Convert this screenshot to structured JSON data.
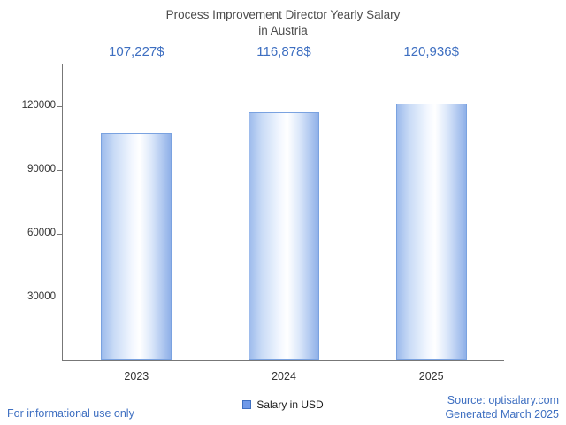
{
  "title": {
    "line1": "Process Improvement Director Yearly Salary",
    "line2": "in Austria"
  },
  "chart_data": {
    "type": "bar",
    "title": "Process Improvement Director Yearly Salary in Austria",
    "categories": [
      "2023",
      "2024",
      "2025"
    ],
    "values": [
      107227,
      116878,
      120936
    ],
    "value_labels": [
      "107,227$",
      "116,878$",
      "120,936$"
    ],
    "series_name": "Salary in USD",
    "xlabel": "",
    "ylabel": "",
    "ylim": [
      0,
      140000
    ],
    "yticks": [
      30000,
      60000,
      90000,
      120000
    ],
    "grid": false,
    "legend_position": "bottom"
  },
  "legend": {
    "label": "Salary in USD"
  },
  "footer": {
    "left": "For informational use only",
    "source": "Source: optisalary.com",
    "generated": "Generated March 2025"
  },
  "colors": {
    "accent_blue": "#3e6fc1",
    "bar_border": "#7aa2e0",
    "bar_fill_edge": "#9dbbec",
    "bar_fill_center": "#ffffff",
    "title_text": "#4d4d4d",
    "axis_text": "#333333"
  }
}
